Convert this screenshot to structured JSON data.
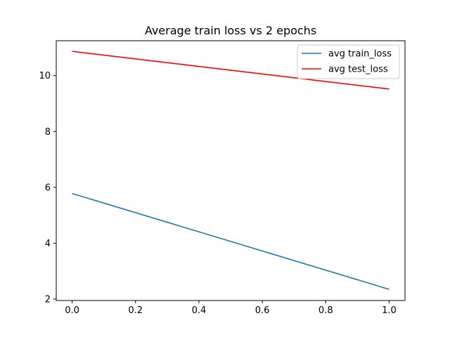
{
  "chart_data": {
    "type": "line",
    "title": "Average train loss vs 2 epochs",
    "xlabel": "",
    "ylabel": "",
    "x": [
      0.0,
      1.0
    ],
    "xlim": [
      -0.05,
      1.05
    ],
    "ylim": [
      1.95,
      11.25
    ],
    "xticks": [
      "0.0",
      "0.2",
      "0.4",
      "0.6",
      "0.8",
      "1.0"
    ],
    "yticks": [
      "2",
      "4",
      "6",
      "8",
      "10"
    ],
    "grid": false,
    "legend_position": "top-right",
    "series": [
      {
        "name": "avg train_loss",
        "values": [
          5.78,
          2.35
        ],
        "color": "#1f77b4"
      },
      {
        "name": "avg test_loss",
        "values": [
          10.87,
          9.52
        ],
        "color": "#ff0000"
      }
    ]
  }
}
